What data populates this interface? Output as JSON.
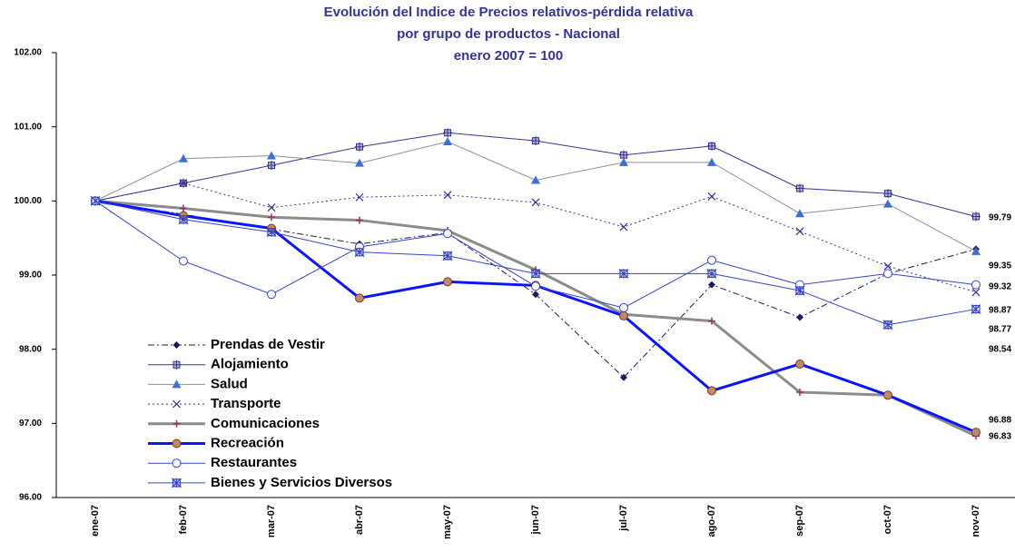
{
  "chart_data": {
    "type": "line",
    "title": [
      "Evolución del Indice de Precios relativos-pérdida relativa",
      "por grupo de productos - Nacional",
      "enero 2007 = 100"
    ],
    "categories": [
      "ene-07",
      "feb-07",
      "mar-07",
      "abr-07",
      "may-07",
      "jun-07",
      "jul-07",
      "ago-07",
      "sep-07",
      "oct-07",
      "nov-07"
    ],
    "ylim": [
      96,
      102
    ],
    "yticks": [
      {
        "value": 96,
        "label": "96.00"
      },
      {
        "value": 97,
        "label": "97.00"
      },
      {
        "value": 98,
        "label": "98.00"
      },
      {
        "value": 99,
        "label": "99.00"
      },
      {
        "value": 100,
        "label": "100.00"
      },
      {
        "value": 101,
        "label": "101.00"
      },
      {
        "value": 102,
        "label": "102.00"
      }
    ],
    "grid": false,
    "legend": "lower left",
    "series": [
      {
        "name": "Prendas de Vestir",
        "color": "#1a1a66",
        "marker": "diamond",
        "line_style": "dashdot",
        "values": [
          100,
          99.82,
          99.62,
          99.42,
          99.57,
          98.74,
          97.62,
          98.87,
          98.43,
          99.02,
          99.35
        ]
      },
      {
        "name": "Alojamiento",
        "color": "#333399",
        "marker": "square-plus",
        "line_style": "solid",
        "values": [
          100,
          100.24,
          100.48,
          100.73,
          100.92,
          100.81,
          100.62,
          100.74,
          100.17,
          100.1,
          99.79
        ]
      },
      {
        "name": "Salud",
        "color": "#3a6fd8",
        "line_color": "#909090",
        "marker": "triangle",
        "line_style": "solid",
        "values": [
          100,
          100.57,
          100.61,
          100.51,
          100.8,
          100.28,
          100.52,
          100.52,
          99.83,
          99.96,
          99.32
        ]
      },
      {
        "name": "Transporte",
        "color": "#333399",
        "marker": "x",
        "line_style": "dotted",
        "values": [
          100,
          100.24,
          99.91,
          100.05,
          100.08,
          99.98,
          99.65,
          100.06,
          99.59,
          99.12,
          98.77
        ]
      },
      {
        "name": "Comunicaciones",
        "color": "#993366",
        "line_color": "#8c8c8c",
        "marker": "plus",
        "line_style": "thick",
        "values": [
          100,
          99.9,
          99.78,
          99.74,
          99.6,
          99.07,
          98.47,
          98.38,
          97.42,
          97.38,
          96.83
        ]
      },
      {
        "name": "Recreación",
        "color": "#c08a6a",
        "line_color": "#0a14ff",
        "marker": "circle",
        "line_style": "thick",
        "values": [
          100,
          99.8,
          99.63,
          98.69,
          98.91,
          98.86,
          98.45,
          97.44,
          97.8,
          97.38,
          96.88
        ]
      },
      {
        "name": "Restaurantes",
        "color": "#3344cc",
        "marker": "open-circle",
        "line_style": "solid",
        "values": [
          100,
          99.19,
          98.74,
          99.38,
          99.56,
          98.85,
          98.56,
          99.2,
          98.87,
          99.02,
          98.87
        ]
      },
      {
        "name": "Bienes y Servicios Diversos",
        "color": "#3344cc",
        "marker": "star",
        "line_style": "solid",
        "values": [
          100,
          99.75,
          99.58,
          99.31,
          99.26,
          99.02,
          99.02,
          99.02,
          98.79,
          98.33,
          98.54
        ]
      }
    ]
  }
}
